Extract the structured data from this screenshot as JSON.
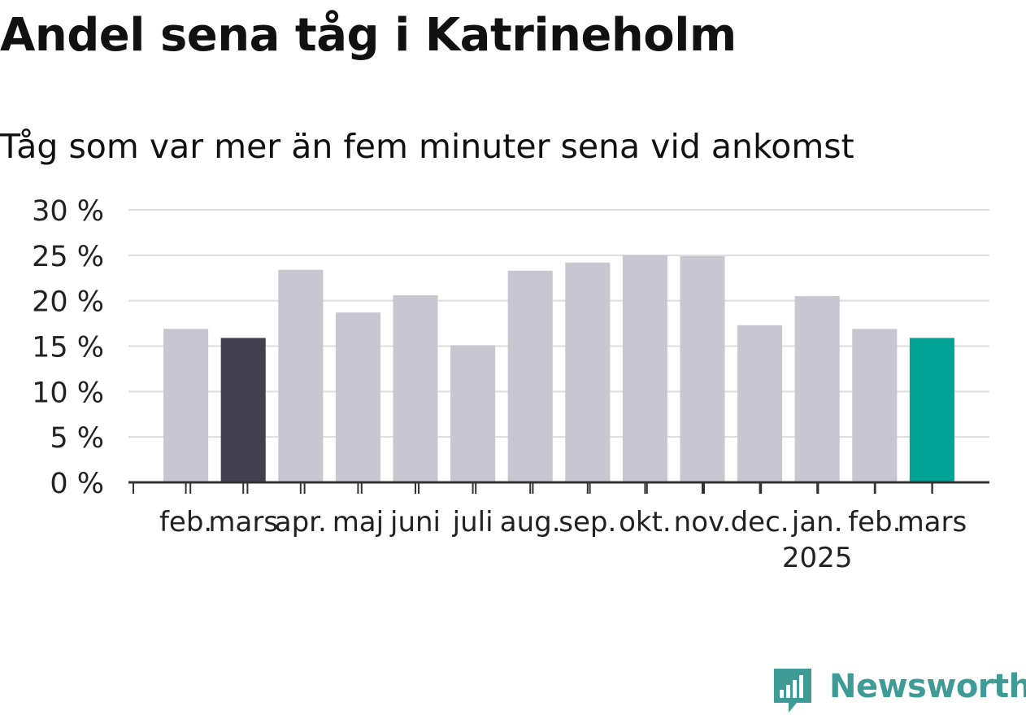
{
  "chart_data": {
    "type": "bar",
    "title": "Andel sena tåg i Katrineholm",
    "subtitle": "Tåg som var mer än fem minuter sena vid ankomst",
    "categories": [
      "feb.",
      "mars",
      "apr.",
      "maj",
      "juni",
      "juli",
      "aug.",
      "sep.",
      "okt.",
      "nov.",
      "dec.",
      "jan.",
      "feb.",
      "mars"
    ],
    "year_label": "2025",
    "year_label_category_index": 11,
    "series": [
      {
        "values": [
          16.9,
          15.9,
          23.4,
          18.7,
          20.6,
          15.1,
          23.3,
          24.2,
          25.0,
          24.9,
          17.3,
          20.5,
          16.9,
          15.9
        ]
      }
    ],
    "ylim": [
      0,
      30
    ],
    "yticks": [
      0,
      5,
      10,
      15,
      20,
      25,
      30
    ],
    "ytick_labels": [
      "0 %",
      "5 %",
      "10 %",
      "15 %",
      "20 %",
      "25 %",
      "30 %"
    ],
    "xlabel": "",
    "ylabel": "",
    "grid": true,
    "colors": {
      "default": "#c8c7d1",
      "last_year_highlight": "#43414f",
      "current_highlight": "#00a396",
      "grid": "#dddddd",
      "axis": "#333333"
    },
    "highlight_indices": {
      "1": "last_year_highlight",
      "13": "current_highlight"
    }
  },
  "brand": {
    "name": "Newsworthy",
    "color": "#3e9b96",
    "icon": "bar-chart-pin-icon"
  }
}
